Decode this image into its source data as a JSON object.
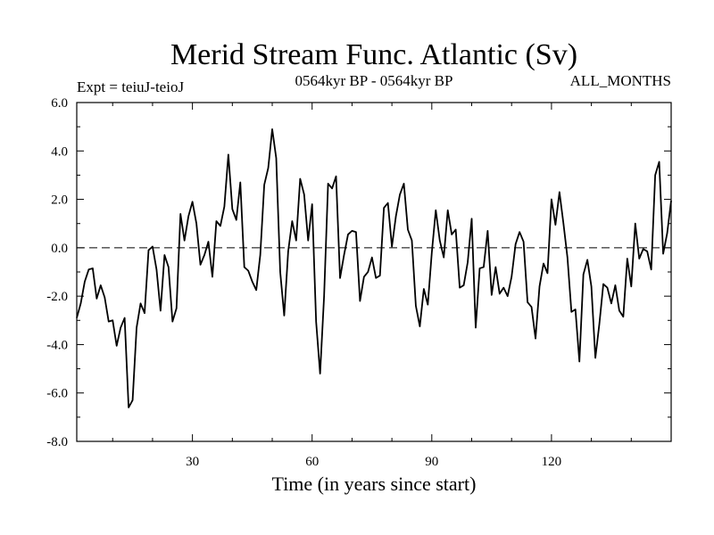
{
  "chart_data": {
    "type": "line",
    "title": "Merid Stream Func. Atlantic (Sv)",
    "subtitle_left": "Expt = teiuJ-teioJ",
    "subtitle_center": "0564kyr BP - 0564kyr BP",
    "subtitle_right": "ALL_MONTHS",
    "xlabel": "Time (in years since start)",
    "ylabel": "",
    "xlim": [
      1,
      150
    ],
    "ylim": [
      -8.0,
      6.0
    ],
    "x_ticks": [
      30,
      60,
      90,
      120
    ],
    "x_tick_labels": [
      "30",
      "60",
      "90",
      "120"
    ],
    "y_ticks": [
      -8,
      -6,
      -4,
      -2,
      0,
      2,
      4,
      6
    ],
    "y_tick_labels": [
      "-8.0",
      "-6.0",
      "-4.0",
      "-2.0",
      "0.0",
      "2.0",
      "4.0",
      "6.0"
    ],
    "reference_line": 0.0,
    "grid": false,
    "series": [
      {
        "name": "Merid Stream Func. Atlantic",
        "x_start": 1,
        "x_step": 1,
        "values": [
          -2.9,
          -2.3,
          -1.4,
          -0.9,
          -0.85,
          -2.1,
          -1.55,
          -2.05,
          -3.05,
          -3.0,
          -4.05,
          -3.3,
          -2.9,
          -6.6,
          -6.3,
          -3.3,
          -2.3,
          -2.7,
          -0.1,
          0.05,
          -0.9,
          -2.6,
          -0.3,
          -0.8,
          -3.05,
          -2.5,
          1.4,
          0.3,
          1.3,
          1.9,
          1.0,
          -0.7,
          -0.3,
          0.25,
          -1.2,
          1.1,
          0.9,
          1.7,
          3.85,
          1.6,
          1.15,
          2.7,
          -0.8,
          -0.95,
          -1.4,
          -1.75,
          -0.3,
          2.6,
          3.3,
          4.9,
          3.7,
          -1.0,
          -2.8,
          -0.15,
          1.1,
          0.3,
          2.85,
          2.2,
          0.3,
          1.8,
          -3.05,
          -5.2,
          -2.0,
          2.65,
          2.45,
          2.95,
          -1.25,
          -0.3,
          0.55,
          0.7,
          0.65,
          -2.2,
          -1.2,
          -1.0,
          -0.4,
          -1.25,
          -1.15,
          1.65,
          1.85,
          0.05,
          1.3,
          2.2,
          2.65,
          0.75,
          0.3,
          -2.4,
          -3.25,
          -1.7,
          -2.35,
          -0.2,
          1.55,
          0.3,
          -0.4,
          1.55,
          0.55,
          0.75,
          -1.65,
          -1.55,
          -0.6,
          1.2,
          -3.3,
          -0.85,
          -0.8,
          0.7,
          -1.95,
          -0.8,
          -1.9,
          -1.65,
          -2.0,
          -1.2,
          0.15,
          0.65,
          0.25,
          -2.25,
          -2.45,
          -3.75,
          -1.6,
          -0.65,
          -1.05,
          2.0,
          0.95,
          2.3,
          1.0,
          -0.4,
          -2.65,
          -2.55,
          -4.7,
          -1.1,
          -0.5,
          -1.6,
          -4.55,
          -3.15,
          -1.5,
          -1.65,
          -2.3,
          -1.55,
          -2.6,
          -2.85,
          -0.45,
          -1.6,
          1.0,
          -0.45,
          -0.05,
          -0.15,
          -0.9,
          3.0,
          3.55,
          -0.25,
          0.6,
          1.95
        ]
      }
    ]
  }
}
